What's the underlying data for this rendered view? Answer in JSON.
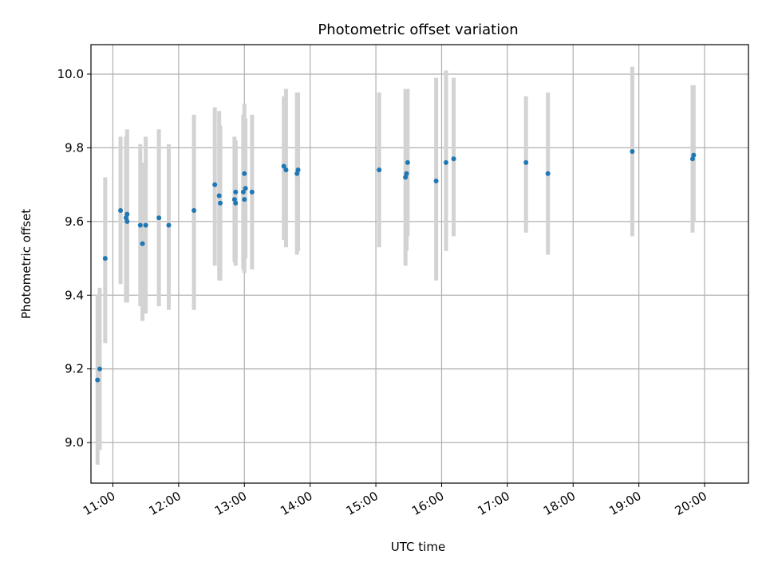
{
  "chart_data": {
    "type": "scatter",
    "title": "Photometric offset variation",
    "xlabel": "UTC time",
    "ylabel": "Photometric offset",
    "xlim": [
      "10:40",
      "20:40"
    ],
    "ylim": [
      8.89,
      10.08
    ],
    "x_ticks": [
      "11:00",
      "12:00",
      "13:00",
      "14:00",
      "15:00",
      "16:00",
      "17:00",
      "18:00",
      "19:00",
      "20:00"
    ],
    "y_ticks": [
      "9.0",
      "9.2",
      "9.4",
      "9.6",
      "9.8",
      "10.0"
    ],
    "grid": true,
    "x_tick_rotation_deg": 30,
    "marker_color": "#1f77b4",
    "errorbar_color": "#d3d3d3",
    "points": [
      {
        "x": "10:46",
        "y": 9.17,
        "low": 8.94,
        "high": 9.4
      },
      {
        "x": "10:48",
        "y": 9.2,
        "low": 8.98,
        "high": 9.42
      },
      {
        "x": "10:53",
        "y": 9.5,
        "low": 9.27,
        "high": 9.72
      },
      {
        "x": "11:07",
        "y": 9.63,
        "low": 9.43,
        "high": 9.83
      },
      {
        "x": "11:12",
        "y": 9.61,
        "low": 9.38,
        "high": 9.83
      },
      {
        "x": "11:13",
        "y": 9.62,
        "low": 9.4,
        "high": 9.85
      },
      {
        "x": "11:13",
        "y": 9.6,
        "low": 9.38,
        "high": 9.8
      },
      {
        "x": "11:25",
        "y": 9.59,
        "low": 9.37,
        "high": 9.81
      },
      {
        "x": "11:27",
        "y": 9.54,
        "low": 9.33,
        "high": 9.76
      },
      {
        "x": "11:30",
        "y": 9.59,
        "low": 9.35,
        "high": 9.83
      },
      {
        "x": "11:42",
        "y": 9.61,
        "low": 9.37,
        "high": 9.85
      },
      {
        "x": "11:51",
        "y": 9.59,
        "low": 9.36,
        "high": 9.81
      },
      {
        "x": "12:14",
        "y": 9.63,
        "low": 9.36,
        "high": 9.89
      },
      {
        "x": "12:33",
        "y": 9.7,
        "low": 9.48,
        "high": 9.91
      },
      {
        "x": "12:37",
        "y": 9.67,
        "low": 9.44,
        "high": 9.9
      },
      {
        "x": "12:38",
        "y": 9.65,
        "low": 9.44,
        "high": 9.86
      },
      {
        "x": "12:51",
        "y": 9.66,
        "low": 9.49,
        "high": 9.83
      },
      {
        "x": "12:52",
        "y": 9.68,
        "low": 9.5,
        "high": 9.82
      },
      {
        "x": "12:52",
        "y": 9.65,
        "low": 9.48,
        "high": 9.8
      },
      {
        "x": "12:59",
        "y": 9.68,
        "low": 9.47,
        "high": 9.89
      },
      {
        "x": "13:00",
        "y": 9.73,
        "low": 9.52,
        "high": 9.92
      },
      {
        "x": "13:00",
        "y": 9.66,
        "low": 9.46,
        "high": 9.86
      },
      {
        "x": "13:01",
        "y": 9.69,
        "low": 9.5,
        "high": 9.88
      },
      {
        "x": "13:07",
        "y": 9.68,
        "low": 9.47,
        "high": 9.89
      },
      {
        "x": "13:36",
        "y": 9.75,
        "low": 9.55,
        "high": 9.94
      },
      {
        "x": "13:38",
        "y": 9.74,
        "low": 9.53,
        "high": 9.96
      },
      {
        "x": "13:48",
        "y": 9.73,
        "low": 9.51,
        "high": 9.95
      },
      {
        "x": "13:49",
        "y": 9.74,
        "low": 9.52,
        "high": 9.95
      },
      {
        "x": "15:03",
        "y": 9.74,
        "low": 9.53,
        "high": 9.95
      },
      {
        "x": "15:27",
        "y": 9.72,
        "low": 9.48,
        "high": 9.96
      },
      {
        "x": "15:28",
        "y": 9.73,
        "low": 9.52,
        "high": 9.95
      },
      {
        "x": "15:29",
        "y": 9.76,
        "low": 9.56,
        "high": 9.96
      },
      {
        "x": "15:55",
        "y": 9.71,
        "low": 9.44,
        "high": 9.99
      },
      {
        "x": "16:04",
        "y": 9.76,
        "low": 9.52,
        "high": 10.01
      },
      {
        "x": "16:11",
        "y": 9.77,
        "low": 9.56,
        "high": 9.99
      },
      {
        "x": "17:17",
        "y": 9.76,
        "low": 9.57,
        "high": 9.94
      },
      {
        "x": "17:37",
        "y": 9.73,
        "low": 9.51,
        "high": 9.95
      },
      {
        "x": "18:54",
        "y": 9.79,
        "low": 9.56,
        "high": 10.02
      },
      {
        "x": "19:49",
        "y": 9.77,
        "low": 9.57,
        "high": 9.97
      },
      {
        "x": "19:50",
        "y": 9.78,
        "low": 9.6,
        "high": 9.97
      }
    ]
  }
}
